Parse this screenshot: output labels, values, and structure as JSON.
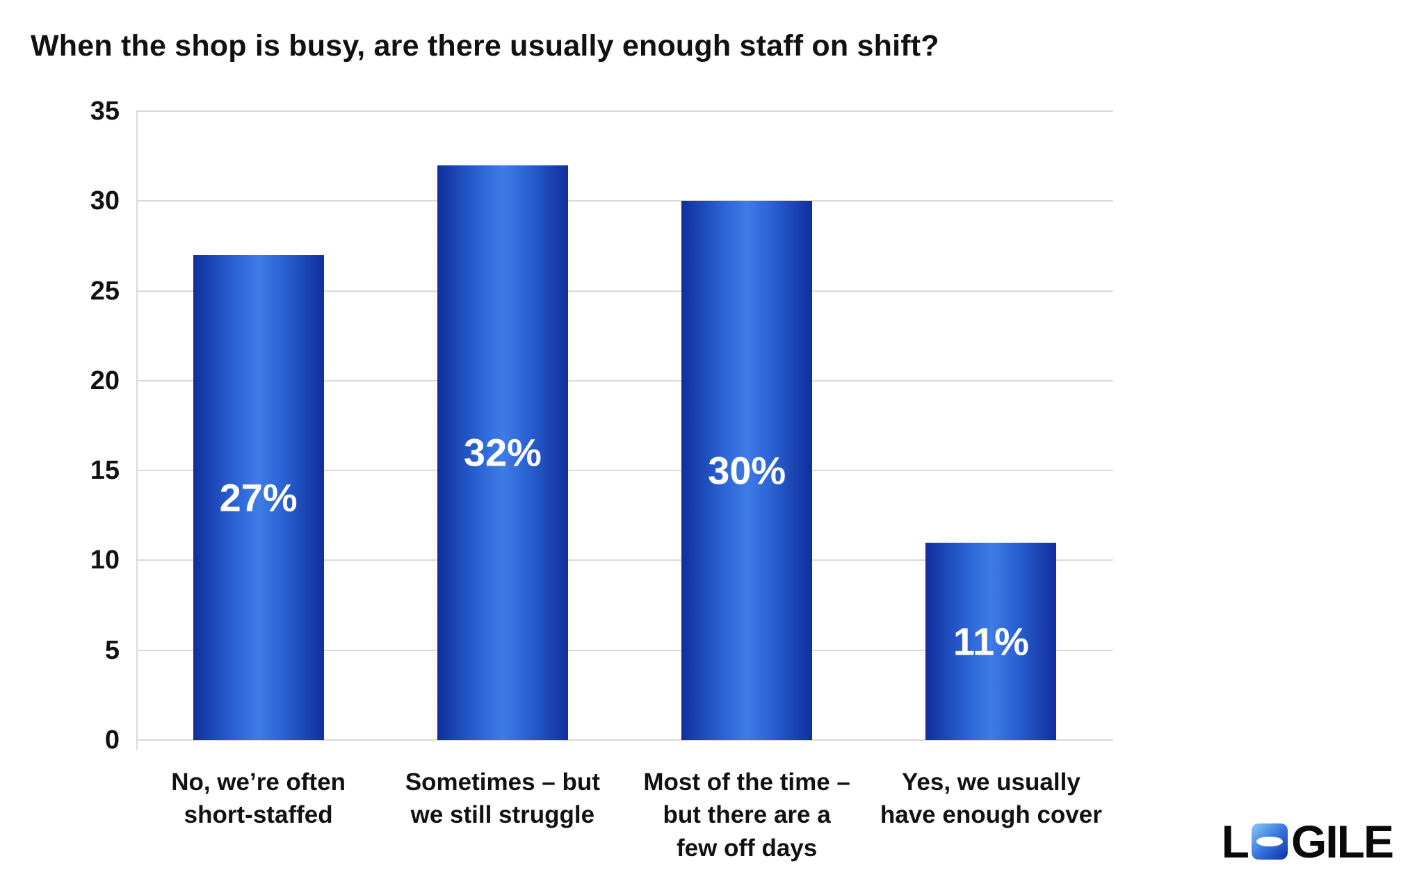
{
  "chart_data": {
    "type": "bar",
    "title": "When the shop is busy, are there usually enough staff on shift?",
    "categories": [
      "No, we’re often short-staffed",
      "Sometimes – but we still struggle",
      "Most of the time – but there are a few off days",
      "Yes, we usually have enough cover"
    ],
    "category_lines": [
      [
        "No, we’re often",
        "short-staffed"
      ],
      [
        "Sometimes – but",
        "we still struggle"
      ],
      [
        "Most of the time –",
        "but there are a",
        "few off days"
      ],
      [
        "Yes, we usually",
        "have enough cover"
      ]
    ],
    "values": [
      27,
      32,
      30,
      11
    ],
    "data_labels": [
      "27%",
      "32%",
      "30%",
      "11%"
    ],
    "xlabel": "",
    "ylabel": "",
    "ylim": [
      0,
      35
    ],
    "yticks": [
      0,
      5,
      10,
      15,
      20,
      25,
      30,
      35
    ],
    "grid": true,
    "legend": "none",
    "bar_edge_color": "#102f9c",
    "bar_center_color": "#3f7ce6",
    "gridline_color": "#d9d9d9",
    "data_label_color": "#ffffff",
    "text_color": "#111111"
  },
  "logo": {
    "prefix": "L",
    "suffix": "GILE",
    "o_icon": "logile-o-icon"
  }
}
